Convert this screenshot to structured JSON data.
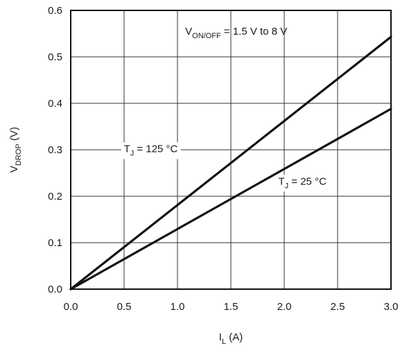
{
  "chart_data": {
    "type": "line",
    "title": "",
    "xlabel": {
      "main": "I",
      "sub": "L",
      "rest": " (A)"
    },
    "ylabel": {
      "main": "V",
      "sub": "DROP",
      "rest": "  (V)"
    },
    "xlim": [
      0.0,
      3.0
    ],
    "ylim": [
      0.0,
      0.6
    ],
    "x_ticks": [
      "0.0",
      "0.5",
      "1.0",
      "1.5",
      "2.0",
      "2.5",
      "3.0"
    ],
    "y_ticks": [
      "0.0",
      "0.1",
      "0.2",
      "0.3",
      "0.4",
      "0.5",
      "0.6"
    ],
    "grid": true,
    "legend": "none",
    "series": [
      {
        "x": [
          0.0,
          3.0
        ],
        "y": [
          0.0,
          0.543
        ],
        "color": "#111111"
      },
      {
        "x": [
          0.0,
          3.0
        ],
        "y": [
          0.0,
          0.388
        ],
        "color": "#111111"
      }
    ],
    "annotations": [
      {
        "main": "V",
        "sub": "ON/OFF",
        "rest": " = 1.5 V to 8 V",
        "x": 1.55,
        "y": 0.548
      },
      {
        "main": "T",
        "sub": "J",
        "rest": " = 125 °C",
        "x": 0.75,
        "y": 0.295
      },
      {
        "main": "T",
        "sub": "J",
        "rest": " = 25 °C",
        "x": 2.17,
        "y": 0.225
      }
    ]
  }
}
